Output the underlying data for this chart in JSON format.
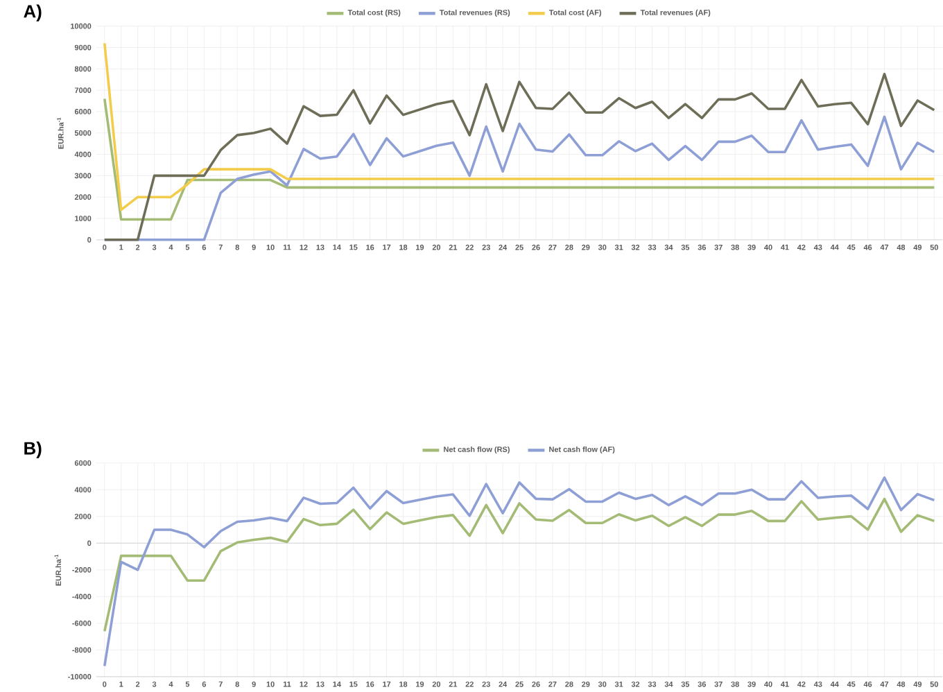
{
  "chart_data": [
    {
      "type": "line",
      "title": "A)",
      "ylabel": "EUR.ha$^{-1}$",
      "categories": [
        "0",
        "1",
        "2",
        "3",
        "4",
        "5",
        "6",
        "7",
        "8",
        "9",
        "10",
        "11",
        "12",
        "13",
        "14",
        "15",
        "16",
        "17",
        "18",
        "19",
        "20",
        "21",
        "22",
        "23",
        "24",
        "25",
        "26",
        "27",
        "28",
        "29",
        "30",
        "31",
        "32",
        "33",
        "34",
        "35",
        "36",
        "37",
        "38",
        "39",
        "40",
        "41",
        "42",
        "43",
        "44",
        "45",
        "46",
        "47",
        "48",
        "49",
        "50"
      ],
      "ylim": [
        0,
        10000
      ],
      "yticks": [
        0,
        1000,
        2000,
        3000,
        4000,
        5000,
        6000,
        7000,
        8000,
        9000,
        10000
      ],
      "grid": true,
      "legend": "top",
      "series": [
        {
          "name": "Total cost (RS)",
          "color": "#a3bb74",
          "values": [
            6600,
            950,
            950,
            950,
            950,
            2800,
            2800,
            2800,
            2800,
            2800,
            2800,
            2450,
            2450,
            2450,
            2450,
            2450,
            2450,
            2450,
            2450,
            2450,
            2450,
            2450,
            2450,
            2450,
            2450,
            2450,
            2450,
            2450,
            2450,
            2450,
            2450,
            2450,
            2450,
            2450,
            2450,
            2450,
            2450,
            2450,
            2450,
            2450,
            2450,
            2450,
            2450,
            2450,
            2450,
            2450,
            2450,
            2450,
            2450,
            2450,
            2450
          ]
        },
        {
          "name": "Total revenues (RS)",
          "color": "#8e9fd6",
          "values": [
            0,
            0,
            0,
            0,
            0,
            0,
            0,
            2200,
            2850,
            3050,
            3200,
            2550,
            4250,
            3800,
            3900,
            4950,
            3500,
            4750,
            3900,
            4150,
            4400,
            4550,
            3000,
            5300,
            3200,
            5430,
            4220,
            4130,
            4930,
            3960,
            3960,
            4610,
            4150,
            4500,
            3740,
            4390,
            3740,
            4590,
            4590,
            4870,
            4110,
            4110,
            5590,
            4220,
            4350,
            4460,
            3460,
            5760,
            3300,
            4540,
            4110
          ]
        },
        {
          "name": "Total cost (AF)",
          "color": "#f2cc4a",
          "values": [
            9200,
            1400,
            2000,
            2000,
            2000,
            2600,
            3300,
            3300,
            3300,
            3300,
            3300,
            2850,
            2850,
            2850,
            2850,
            2850,
            2850,
            2850,
            2850,
            2850,
            2850,
            2850,
            2850,
            2850,
            2850,
            2850,
            2850,
            2850,
            2850,
            2850,
            2850,
            2850,
            2850,
            2850,
            2850,
            2850,
            2850,
            2850,
            2850,
            2850,
            2850,
            2850,
            2850,
            2850,
            2850,
            2850,
            2850,
            2850,
            2850,
            2850,
            2850
          ]
        },
        {
          "name": "Total revenues (AF)",
          "color": "#6e6e58",
          "values": [
            0,
            0,
            0,
            3000,
            3000,
            3000,
            3000,
            4200,
            4900,
            5000,
            5200,
            4500,
            6250,
            5800,
            5850,
            7000,
            5450,
            6750,
            5850,
            6100,
            6350,
            6500,
            4900,
            7280,
            5090,
            7390,
            6170,
            6130,
            6890,
            5960,
            5960,
            6630,
            6170,
            6460,
            5700,
            6350,
            5700,
            6570,
            6570,
            6850,
            6130,
            6130,
            7480,
            6240,
            6350,
            6410,
            5410,
            7760,
            5330,
            6520,
            6070
          ]
        }
      ]
    },
    {
      "type": "line",
      "title": "B)",
      "ylabel": "EUR.ha$^{-1}$",
      "categories": [
        "0",
        "1",
        "2",
        "3",
        "4",
        "5",
        "6",
        "7",
        "8",
        "9",
        "10",
        "11",
        "12",
        "13",
        "14",
        "15",
        "16",
        "17",
        "18",
        "19",
        "20",
        "21",
        "22",
        "23",
        "24",
        "25",
        "26",
        "27",
        "28",
        "29",
        "30",
        "31",
        "32",
        "33",
        "34",
        "35",
        "36",
        "37",
        "38",
        "39",
        "40",
        "41",
        "42",
        "43",
        "44",
        "45",
        "46",
        "47",
        "48",
        "49",
        "50"
      ],
      "ylim": [
        -10000,
        6000
      ],
      "yticks": [
        -10000,
        -8000,
        -6000,
        -4000,
        -2000,
        0,
        2000,
        4000,
        6000
      ],
      "grid": true,
      "legend": "top",
      "series": [
        {
          "name": "Net cash flow (RS)",
          "color": "#a3bb74",
          "values": [
            -6600,
            -950,
            -950,
            -950,
            -950,
            -2800,
            -2800,
            -600,
            50,
            250,
            400,
            100,
            1800,
            1350,
            1450,
            2500,
            1050,
            2300,
            1450,
            1700,
            1950,
            2100,
            550,
            2850,
            750,
            2980,
            1770,
            1680,
            2480,
            1510,
            1510,
            2160,
            1700,
            2050,
            1290,
            1940,
            1290,
            2140,
            2140,
            2420,
            1660,
            1660,
            3140,
            1770,
            1900,
            2010,
            1010,
            3310,
            850,
            2090,
            1660
          ]
        },
        {
          "name": "Net cash flow (AF)",
          "color": "#8e9fd6",
          "values": [
            -9200,
            -1400,
            -2000,
            1000,
            1000,
            650,
            -300,
            900,
            1600,
            1700,
            1900,
            1650,
            3400,
            2950,
            3000,
            4150,
            2600,
            3900,
            3000,
            3250,
            3500,
            3650,
            2050,
            4430,
            2240,
            4540,
            3320,
            3280,
            4040,
            3110,
            3110,
            3780,
            3320,
            3610,
            2850,
            3500,
            2850,
            3720,
            3720,
            4000,
            3280,
            3280,
            4630,
            3390,
            3500,
            3560,
            2560,
            4910,
            2480,
            3670,
            3220
          ]
        }
      ]
    }
  ]
}
